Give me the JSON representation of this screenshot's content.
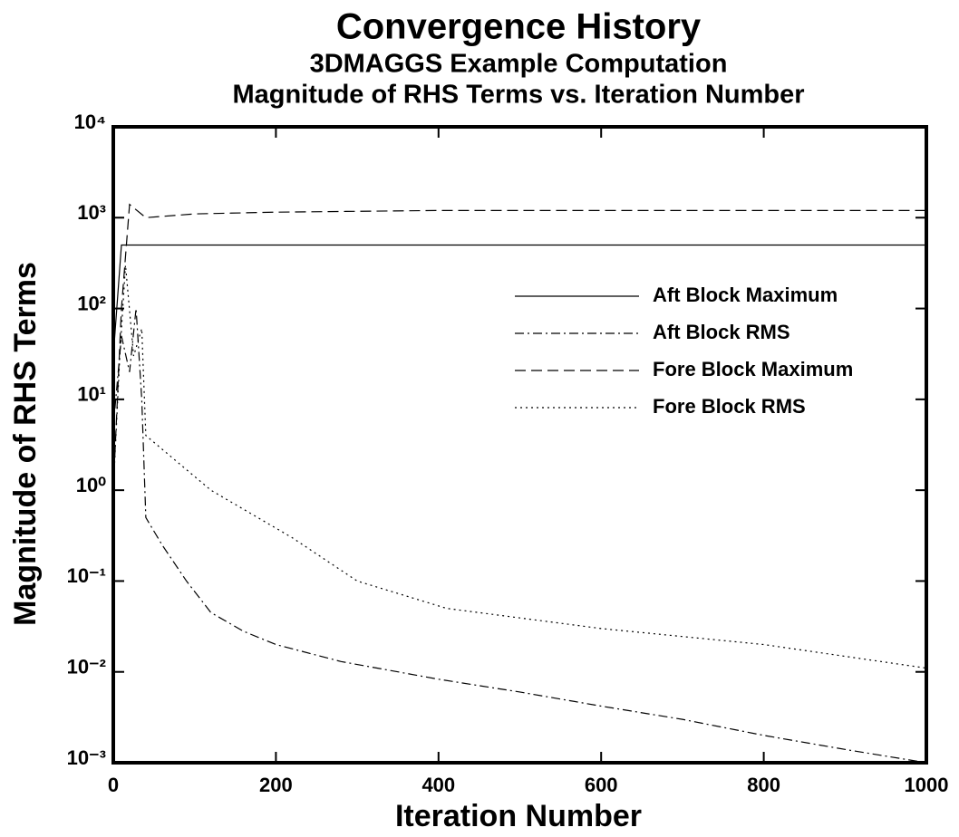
{
  "chart_data": {
    "type": "line",
    "title": "Convergence History",
    "subtitle": "3DMAGGS Example Computation",
    "subtitle2": "Magnitude of RHS Terms vs. Iteration Number",
    "xlabel": "Iteration Number",
    "ylabel": "Magnitude of RHS Terms",
    "xlim": [
      0,
      1000
    ],
    "xticks": [
      0,
      200,
      400,
      600,
      800,
      1000
    ],
    "ylim": [
      0.001,
      10000
    ],
    "yscale": "log",
    "yticks": [
      {
        "value": 0.001,
        "label": "10⁻³"
      },
      {
        "value": 0.01,
        "label": "10⁻²"
      },
      {
        "value": 0.1,
        "label": "10⁻¹"
      },
      {
        "value": 1,
        "label": "10⁰"
      },
      {
        "value": 10,
        "label": "10¹"
      },
      {
        "value": 100,
        "label": "10²"
      },
      {
        "value": 1000,
        "label": "10³"
      },
      {
        "value": 10000,
        "label": "10⁴"
      }
    ],
    "grid": false,
    "legend": "right",
    "series": [
      {
        "name": "Aft Block Maximum",
        "color": "#000000",
        "style": "solid",
        "x": [
          0,
          10,
          1000
        ],
        "values": [
          30,
          500,
          500
        ]
      },
      {
        "name": "Aft Block RMS",
        "color": "#000000",
        "style": "dashdot",
        "x": [
          0,
          10,
          20,
          28,
          35,
          40,
          60,
          90,
          120,
          160,
          200,
          280,
          400,
          500,
          600,
          700,
          800,
          900,
          1000
        ],
        "values": [
          5,
          50,
          20,
          100,
          10,
          0.5,
          0.25,
          0.1,
          0.045,
          0.028,
          0.02,
          0.013,
          0.0083,
          0.006,
          0.0042,
          0.003,
          0.002,
          0.0014,
          0.001
        ]
      },
      {
        "name": "Fore Block Maximum",
        "color": "#000000",
        "style": "dashed",
        "x": [
          0,
          10,
          20,
          40,
          100,
          200,
          400,
          1000
        ],
        "values": [
          1,
          100,
          1400,
          1000,
          1100,
          1150,
          1200,
          1200
        ]
      },
      {
        "name": "Fore Block RMS",
        "color": "#000000",
        "style": "dotted",
        "x": [
          0,
          8,
          15,
          25,
          35,
          40,
          80,
          120,
          220,
          300,
          410,
          600,
          800,
          1000
        ],
        "values": [
          1,
          30,
          300,
          30,
          60,
          4,
          2,
          1,
          0.3,
          0.1,
          0.05,
          0.03,
          0.02,
          0.011
        ]
      }
    ]
  }
}
